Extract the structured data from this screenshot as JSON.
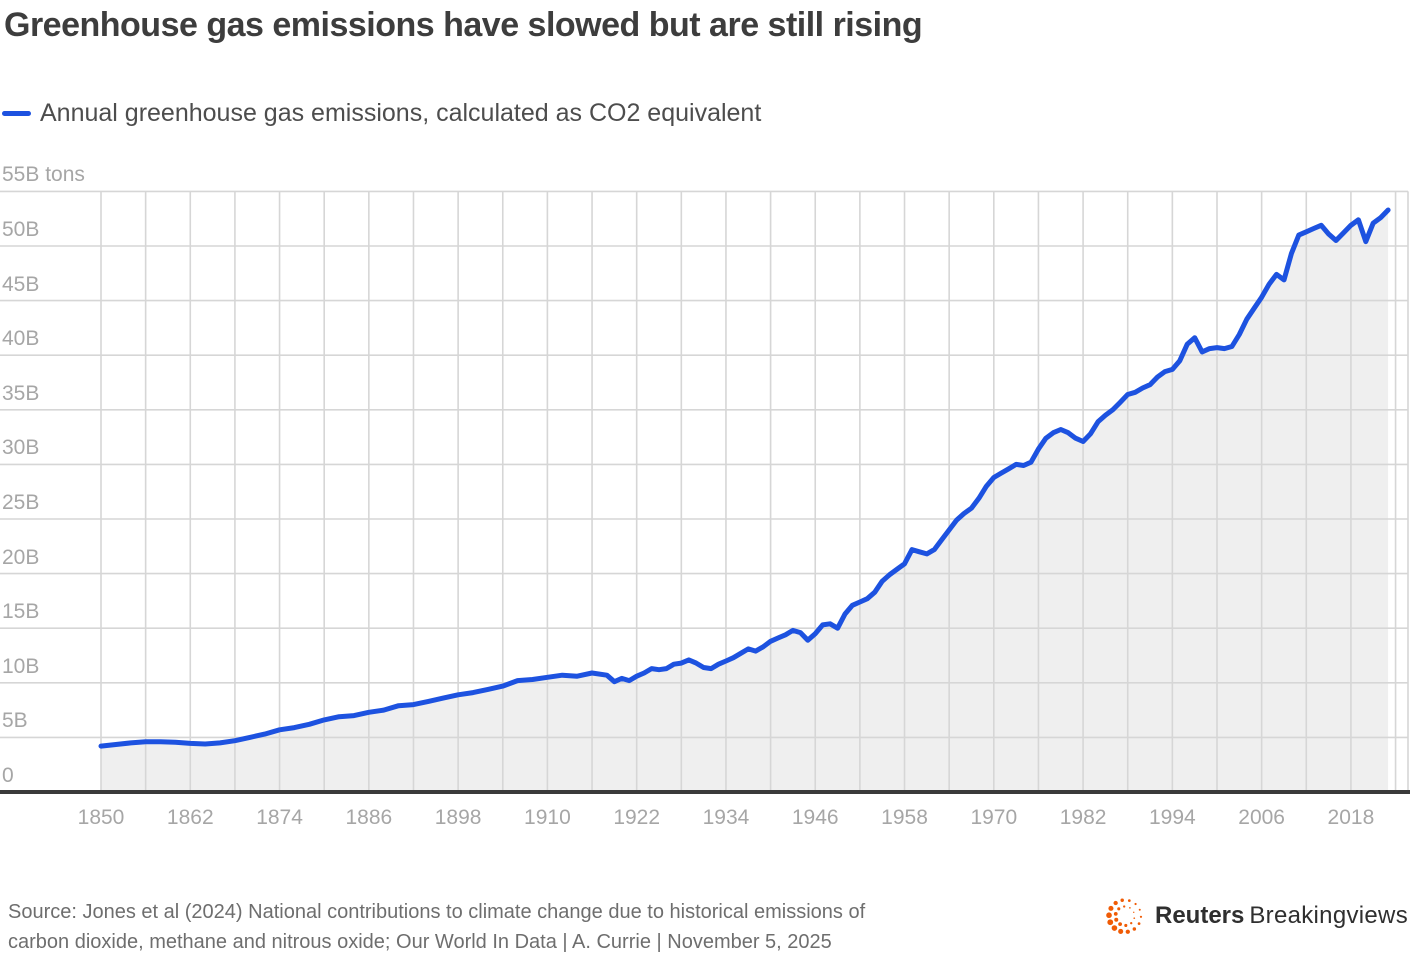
{
  "header": {
    "title": "Greenhouse gas emissions have slowed but are still rising"
  },
  "legend": {
    "label": "Annual greenhouse gas emissions, calculated as CO2 equivalent"
  },
  "chart_data": {
    "type": "area",
    "title": "Greenhouse gas emissions have slowed but are still rising",
    "series_name": "Annual greenhouse gas emissions, calculated as CO2 equivalent",
    "unit": "billion tons CO2 equivalent per year",
    "x_range": [
      1850,
      2026
    ],
    "y_range": [
      0,
      55
    ],
    "grid": true,
    "x_ticks": [
      1850,
      1862,
      1874,
      1886,
      1898,
      1910,
      1922,
      1934,
      1946,
      1958,
      1970,
      1982,
      1994,
      2006,
      2018
    ],
    "y_ticks": [
      {
        "value": 55,
        "label": "55B tons"
      },
      {
        "value": 50,
        "label": "50B"
      },
      {
        "value": 45,
        "label": "45B"
      },
      {
        "value": 40,
        "label": "40B"
      },
      {
        "value": 35,
        "label": "35B"
      },
      {
        "value": 30,
        "label": "30B"
      },
      {
        "value": 25,
        "label": "25B"
      },
      {
        "value": 20,
        "label": "20B"
      },
      {
        "value": 15,
        "label": "15B"
      },
      {
        "value": 10,
        "label": "10B"
      },
      {
        "value": 5,
        "label": "5B"
      },
      {
        "value": 0,
        "label": "0"
      }
    ],
    "points": [
      [
        1850,
        4.2
      ],
      [
        1852,
        4.35
      ],
      [
        1854,
        4.5
      ],
      [
        1856,
        4.6
      ],
      [
        1858,
        4.6
      ],
      [
        1860,
        4.55
      ],
      [
        1862,
        4.45
      ],
      [
        1864,
        4.4
      ],
      [
        1866,
        4.5
      ],
      [
        1868,
        4.7
      ],
      [
        1870,
        5.0
      ],
      [
        1872,
        5.3
      ],
      [
        1874,
        5.7
      ],
      [
        1876,
        5.9
      ],
      [
        1878,
        6.2
      ],
      [
        1880,
        6.6
      ],
      [
        1882,
        6.9
      ],
      [
        1884,
        7.0
      ],
      [
        1886,
        7.3
      ],
      [
        1888,
        7.5
      ],
      [
        1890,
        7.9
      ],
      [
        1892,
        8.0
      ],
      [
        1894,
        8.3
      ],
      [
        1896,
        8.6
      ],
      [
        1898,
        8.9
      ],
      [
        1900,
        9.1
      ],
      [
        1902,
        9.4
      ],
      [
        1904,
        9.7
      ],
      [
        1906,
        10.2
      ],
      [
        1908,
        10.3
      ],
      [
        1910,
        10.5
      ],
      [
        1912,
        10.7
      ],
      [
        1914,
        10.6
      ],
      [
        1916,
        10.9
      ],
      [
        1918,
        10.7
      ],
      [
        1919,
        10.1
      ],
      [
        1920,
        10.4
      ],
      [
        1921,
        10.2
      ],
      [
        1922,
        10.6
      ],
      [
        1923,
        10.9
      ],
      [
        1924,
        11.3
      ],
      [
        1925,
        11.2
      ],
      [
        1926,
        11.3
      ],
      [
        1927,
        11.7
      ],
      [
        1928,
        11.8
      ],
      [
        1929,
        12.1
      ],
      [
        1930,
        11.8
      ],
      [
        1931,
        11.4
      ],
      [
        1932,
        11.3
      ],
      [
        1933,
        11.7
      ],
      [
        1934,
        12.0
      ],
      [
        1935,
        12.3
      ],
      [
        1936,
        12.7
      ],
      [
        1937,
        13.1
      ],
      [
        1938,
        12.9
      ],
      [
        1939,
        13.3
      ],
      [
        1940,
        13.8
      ],
      [
        1941,
        14.1
      ],
      [
        1942,
        14.4
      ],
      [
        1943,
        14.8
      ],
      [
        1944,
        14.6
      ],
      [
        1945,
        13.9
      ],
      [
        1946,
        14.5
      ],
      [
        1947,
        15.3
      ],
      [
        1948,
        15.4
      ],
      [
        1949,
        15.0
      ],
      [
        1950,
        16.3
      ],
      [
        1951,
        17.1
      ],
      [
        1952,
        17.4
      ],
      [
        1953,
        17.7
      ],
      [
        1954,
        18.3
      ],
      [
        1955,
        19.3
      ],
      [
        1956,
        19.9
      ],
      [
        1957,
        20.4
      ],
      [
        1958,
        20.9
      ],
      [
        1959,
        22.2
      ],
      [
        1960,
        22.0
      ],
      [
        1961,
        21.8
      ],
      [
        1962,
        22.2
      ],
      [
        1963,
        23.1
      ],
      [
        1964,
        24.0
      ],
      [
        1965,
        24.9
      ],
      [
        1966,
        25.5
      ],
      [
        1967,
        26.0
      ],
      [
        1968,
        26.9
      ],
      [
        1969,
        28.0
      ],
      [
        1970,
        28.8
      ],
      [
        1971,
        29.2
      ],
      [
        1972,
        29.6
      ],
      [
        1973,
        30.0
      ],
      [
        1974,
        29.9
      ],
      [
        1975,
        30.2
      ],
      [
        1976,
        31.4
      ],
      [
        1977,
        32.4
      ],
      [
        1978,
        32.9
      ],
      [
        1979,
        33.2
      ],
      [
        1980,
        32.9
      ],
      [
        1981,
        32.4
      ],
      [
        1982,
        32.1
      ],
      [
        1983,
        32.8
      ],
      [
        1984,
        33.9
      ],
      [
        1985,
        34.5
      ],
      [
        1986,
        35.0
      ],
      [
        1987,
        35.7
      ],
      [
        1988,
        36.4
      ],
      [
        1989,
        36.6
      ],
      [
        1990,
        37.0
      ],
      [
        1991,
        37.3
      ],
      [
        1992,
        38.0
      ],
      [
        1993,
        38.5
      ],
      [
        1994,
        38.7
      ],
      [
        1995,
        39.5
      ],
      [
        1996,
        41.0
      ],
      [
        1997,
        41.6
      ],
      [
        1998,
        40.3
      ],
      [
        1999,
        40.6
      ],
      [
        2000,
        40.7
      ],
      [
        2001,
        40.6
      ],
      [
        2002,
        40.8
      ],
      [
        2003,
        41.9
      ],
      [
        2004,
        43.3
      ],
      [
        2005,
        44.3
      ],
      [
        2006,
        45.3
      ],
      [
        2007,
        46.5
      ],
      [
        2008,
        47.4
      ],
      [
        2009,
        46.9
      ],
      [
        2010,
        49.3
      ],
      [
        2011,
        51.0
      ],
      [
        2012,
        51.3
      ],
      [
        2013,
        51.6
      ],
      [
        2014,
        51.9
      ],
      [
        2015,
        51.1
      ],
      [
        2016,
        50.5
      ],
      [
        2017,
        51.2
      ],
      [
        2018,
        51.9
      ],
      [
        2019,
        52.4
      ],
      [
        2020,
        50.4
      ],
      [
        2021,
        52.1
      ],
      [
        2022,
        52.6
      ],
      [
        2023,
        53.3
      ]
    ],
    "colors": {
      "line": "#1d52e0",
      "area_fill": "#efefef",
      "grid": "#d6d6d6",
      "axis": "#3a3a3a",
      "tick_label": "#a6a6a6"
    }
  },
  "footer": {
    "source_line1": "Source: Jones et al (2024) National contributions to climate change due to historical emissions of",
    "source_line2": "carbon dioxide, methane and nitrous oxide; Our World In Data | A. Currie | November 5, 2025",
    "logo": {
      "bold": "Reuters",
      "regular": "Breakingviews",
      "dot_color": "#f05b05",
      "text_color": "#2f2f2f"
    }
  }
}
